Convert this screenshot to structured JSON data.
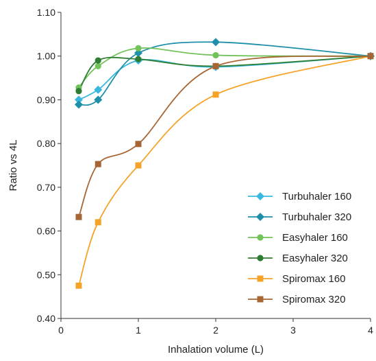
{
  "chart_data": {
    "type": "line",
    "xlabel": "Inhalation volume (L)",
    "ylabel": "Ratio vs 4L",
    "xlim": [
      0,
      4
    ],
    "ylim": [
      0.4,
      1.1
    ],
    "x_ticks": [
      {
        "value": 0,
        "label": "0"
      },
      {
        "value": 1,
        "label": "1"
      },
      {
        "value": 2,
        "label": "2"
      },
      {
        "value": 3,
        "label": "3"
      },
      {
        "value": 4,
        "label": "4"
      }
    ],
    "y_ticks": [
      {
        "value": 0.4,
        "label": "0.40"
      },
      {
        "value": 0.5,
        "label": "0.50"
      },
      {
        "value": 0.6,
        "label": "0.60"
      },
      {
        "value": 0.7,
        "label": "0.70"
      },
      {
        "value": 0.8,
        "label": "0.80"
      },
      {
        "value": 0.9,
        "label": "0.90"
      },
      {
        "value": 1.0,
        "label": "1.00"
      },
      {
        "value": 1.1,
        "label": "1.10"
      }
    ],
    "grid": false,
    "legend_position": "bottom-right",
    "series": [
      {
        "name": "Turbuhaler 160",
        "color": "#38b8e0",
        "marker": "diamond",
        "points": [
          [
            0.23,
            0.9
          ],
          [
            0.48,
            0.923
          ],
          [
            1.0,
            0.99
          ],
          [
            2.0,
            0.975
          ],
          [
            4.0,
            1.0
          ]
        ]
      },
      {
        "name": "Turbuhaler 320",
        "color": "#1e8fa8",
        "marker": "diamond",
        "points": [
          [
            0.23,
            0.889
          ],
          [
            0.48,
            0.9
          ],
          [
            1.0,
            1.007
          ],
          [
            2.0,
            1.032
          ],
          [
            4.0,
            1.0
          ]
        ]
      },
      {
        "name": "Easyhaler 160",
        "color": "#72c35a",
        "marker": "circle",
        "points": [
          [
            0.23,
            0.928
          ],
          [
            0.48,
            0.977
          ],
          [
            1.0,
            1.018
          ],
          [
            2.0,
            1.002
          ],
          [
            4.0,
            1.0
          ]
        ]
      },
      {
        "name": "Easyhaler 320",
        "color": "#2e7d32",
        "marker": "circle",
        "points": [
          [
            0.23,
            0.92
          ],
          [
            0.48,
            0.99
          ],
          [
            1.0,
            0.993
          ],
          [
            2.0,
            0.977
          ],
          [
            4.0,
            1.0
          ]
        ]
      },
      {
        "name": "Spiromax 160",
        "color": "#f5a328",
        "marker": "square",
        "points": [
          [
            0.23,
            0.475
          ],
          [
            0.48,
            0.62
          ],
          [
            1.0,
            0.75
          ],
          [
            2.0,
            0.912
          ],
          [
            4.0,
            1.0
          ]
        ]
      },
      {
        "name": "Spiromax 320",
        "color": "#a86534",
        "marker": "square",
        "points": [
          [
            0.23,
            0.632
          ],
          [
            0.48,
            0.753
          ],
          [
            1.0,
            0.799
          ],
          [
            2.0,
            0.977
          ],
          [
            4.0,
            1.0
          ]
        ]
      }
    ]
  }
}
